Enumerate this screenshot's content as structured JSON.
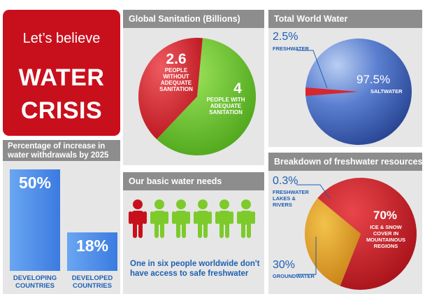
{
  "title_card": {
    "lead": "Let’s believe",
    "line1": "WATER",
    "line2": "CRISIS"
  },
  "sanitation": {
    "title": "Global Sanitation (Billions)",
    "without": {
      "value": "2.6",
      "label_lines": [
        "PEOPLE",
        "WITHOUT",
        "ADEQUATE",
        "SANITATION"
      ],
      "amount": 2.6
    },
    "with": {
      "value": "4",
      "label_lines": [
        "PEOPLE WITH",
        "ADEQUATE",
        "SANITATION"
      ],
      "amount": 4
    },
    "colors": {
      "without": "#d8262e",
      "with": "#6cc52c"
    }
  },
  "world_water": {
    "title": "Total World Water",
    "fresh": {
      "value": "2.5%",
      "label": "FRESHWATER",
      "percent": 2.5
    },
    "salt": {
      "value": "97.5%",
      "label": "SALTWATER",
      "percent": 97.5
    },
    "colors": {
      "salt": "#3a5db3",
      "fresh": "#d8262e"
    }
  },
  "withdrawals": {
    "title_lines": [
      "Percentage of increase in",
      "water withdrawals by 2025"
    ],
    "bars": [
      {
        "value": "50%",
        "label_lines": [
          "DEVELOPING",
          "COUNTRIES"
        ],
        "percent": 50
      },
      {
        "value": "18%",
        "label_lines": [
          "DEVELOPED",
          "COUNTRIES"
        ],
        "percent": 18
      }
    ]
  },
  "needs": {
    "title": "Our basic water needs",
    "caption_lines": [
      "One in six people worldwide don't",
      "have access to safe freshwater"
    ],
    "people": [
      {
        "color": "#c8101c"
      },
      {
        "color": "#7ccb2a"
      },
      {
        "color": "#7ccb2a"
      },
      {
        "color": "#7ccb2a"
      },
      {
        "color": "#7ccb2a"
      },
      {
        "color": "#7ccb2a"
      }
    ]
  },
  "freshwater": {
    "title": "Breakdown of freshwater resources",
    "lakes": {
      "value": "0.3%",
      "label_lines": [
        "FRESHWATER",
        "LAKES &",
        "RIVERS"
      ],
      "percent": 0.3
    },
    "ice": {
      "value": "70%",
      "label_lines": [
        "ICE & SNOW",
        "COVER IN",
        "MOUNTAINOUS",
        "REGIONS"
      ],
      "percent": 70
    },
    "ground": {
      "value": "30%",
      "label": "GROUNDWATER",
      "percent": 30
    },
    "colors": {
      "ice": "#cc1f26",
      "ground": "#e6a72a"
    }
  }
}
